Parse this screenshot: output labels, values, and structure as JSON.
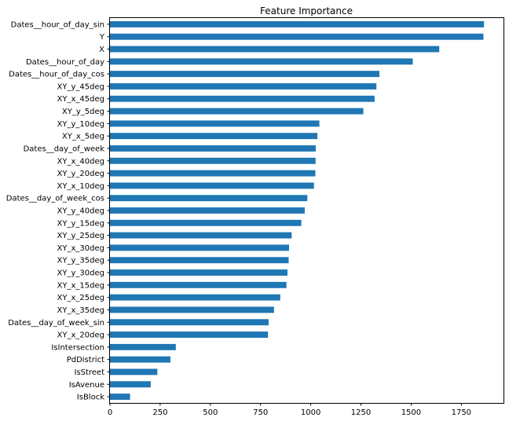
{
  "chart_data": {
    "type": "bar",
    "orientation": "horizontal",
    "title": "Feature Importance",
    "xlabel": "",
    "ylabel": "",
    "xlim": [
      0,
      1960
    ],
    "xticks": [
      0,
      250,
      500,
      750,
      1000,
      1250,
      1500,
      1750
    ],
    "grid": false,
    "legend": "none",
    "bar_color": "#1f77b4",
    "categories": [
      "Dates__hour_of_day_sin",
      "Y",
      "X",
      "Dates__hour_of_day",
      "Dates__hour_of_day_cos",
      "XY_y_45deg",
      "XY_x_45deg",
      "XY_y_5deg",
      "XY_y_10deg",
      "XY_x_5deg",
      "Dates__day_of_week",
      "XY_x_40deg",
      "XY_y_20deg",
      "XY_x_10deg",
      "Dates__day_of_week_cos",
      "XY_y_40deg",
      "XY_y_15deg",
      "XY_y_25deg",
      "XY_x_30deg",
      "XY_y_35deg",
      "XY_y_30deg",
      "XY_x_15deg",
      "XY_x_25deg",
      "XY_x_35deg",
      "Dates__day_of_week_sin",
      "XY_x_20deg",
      "IsIntersection",
      "PdDistrict",
      "IsStreet",
      "IsAvenue",
      "IsBlock"
    ],
    "values": [
      1863,
      1860,
      1640,
      1508,
      1342,
      1327,
      1318,
      1262,
      1043,
      1033,
      1025,
      1024,
      1023,
      1016,
      983,
      970,
      953,
      905,
      892,
      890,
      884,
      879,
      848,
      817,
      790,
      787,
      328,
      301,
      236,
      203,
      100
    ]
  }
}
